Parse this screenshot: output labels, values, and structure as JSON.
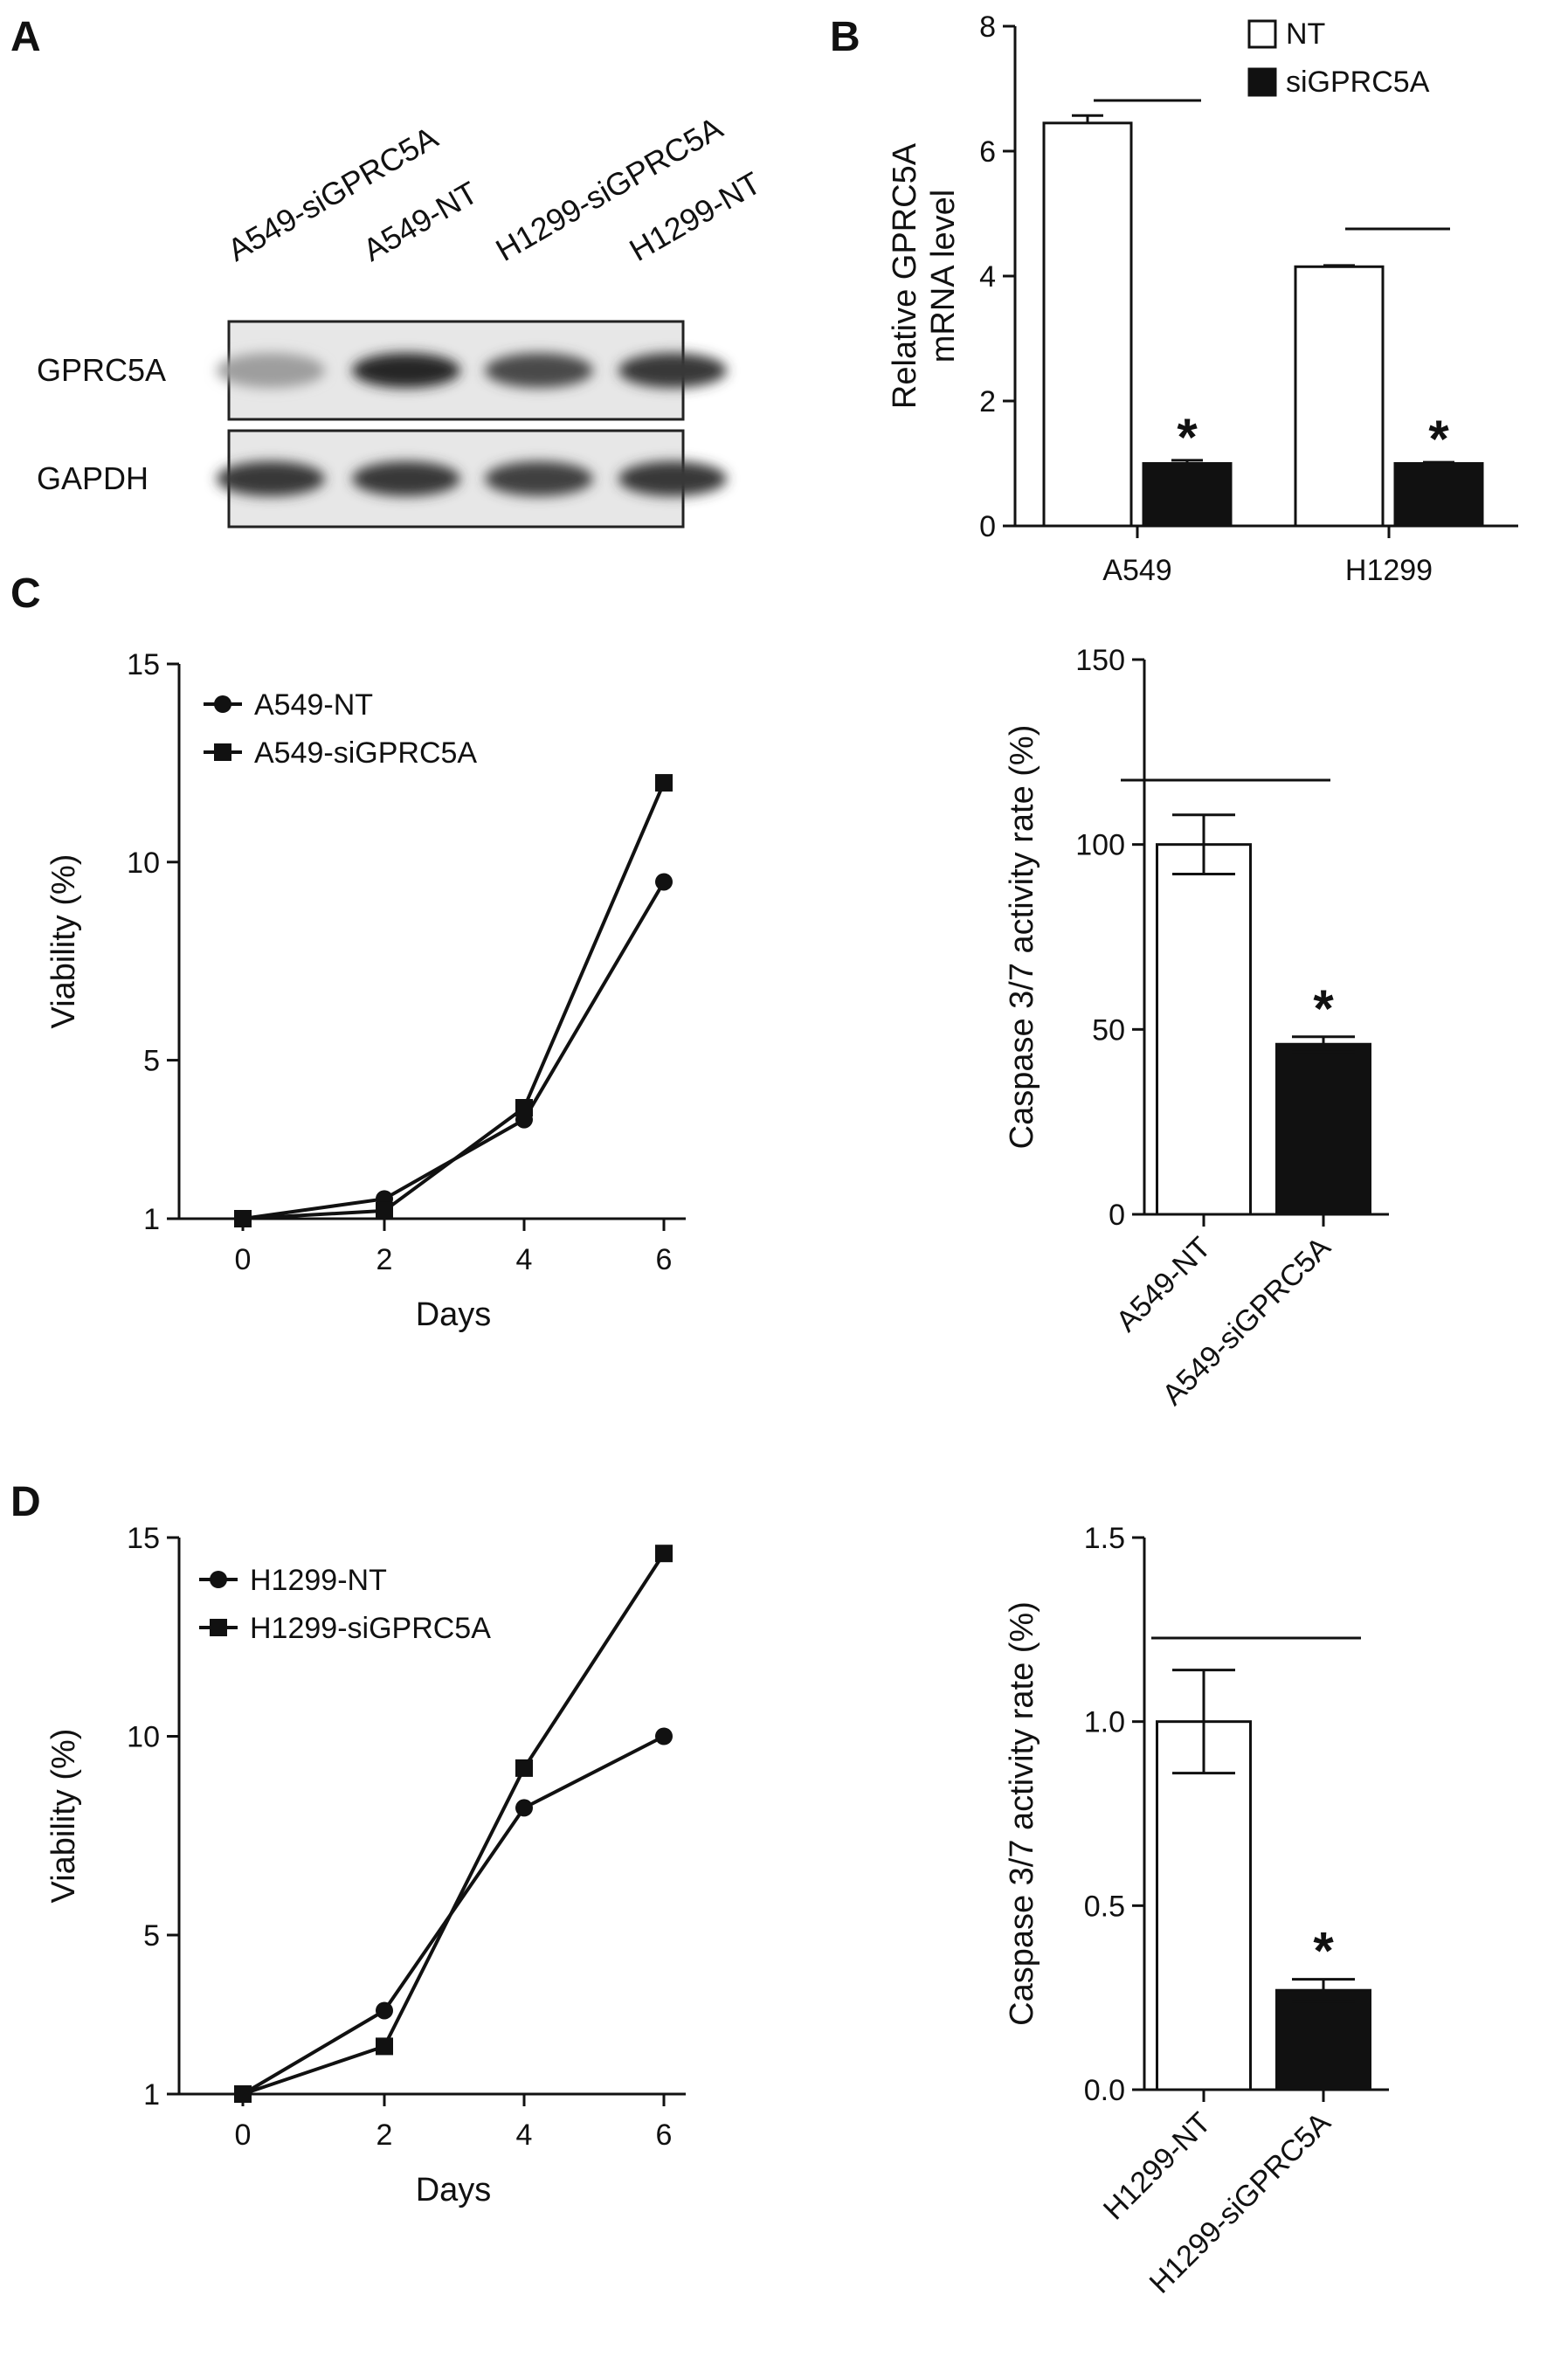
{
  "panel_labels": {
    "A": "A",
    "B": "B",
    "C": "C",
    "D": "D"
  },
  "blot": {
    "lanes": [
      "A549-siGPRC5A",
      "A549-NT",
      "H1299-siGPRC5A",
      "H1299-NT"
    ],
    "rows": [
      {
        "label": "GPRC5A",
        "intensity": [
          0.25,
          0.95,
          0.75,
          0.85
        ]
      },
      {
        "label": "GAPDH",
        "intensity": [
          0.85,
          0.85,
          0.8,
          0.85
        ]
      }
    ]
  },
  "chart_data": [
    {
      "id": "B",
      "type": "bar",
      "ylabel": "Relative GPRC5A\nmRNA level",
      "categories": [
        "A549",
        "H1299"
      ],
      "ylim": [
        0,
        8
      ],
      "yticks": [
        "0",
        "2",
        "4",
        "6",
        "8"
      ],
      "series": [
        {
          "name": "NT",
          "color": "#ffffff",
          "values": [
            6.45,
            4.15
          ],
          "err": [
            0.12,
            0.02
          ]
        },
        {
          "name": "siGPRC5A",
          "color": "#111111",
          "values": [
            1.0,
            1.0
          ],
          "err": [
            0.05,
            0.02
          ]
        }
      ],
      "annotations": [
        "*",
        "*"
      ],
      "legend": "top-right"
    },
    {
      "id": "C-left",
      "type": "line",
      "xlabel": "Days",
      "ylabel": "Viability (%)",
      "x": [
        0,
        2,
        4,
        6
      ],
      "xticks": [
        "0",
        "2",
        "4",
        "6"
      ],
      "ylim": [
        1,
        15
      ],
      "yticks": [
        "1",
        "5",
        "10",
        "15"
      ],
      "series": [
        {
          "name": "A549-NT",
          "marker": "circle",
          "values": [
            1.0,
            1.5,
            3.5,
            9.5
          ]
        },
        {
          "name": "A549-siGPRC5A",
          "marker": "square",
          "values": [
            1.0,
            1.2,
            3.8,
            12.0
          ]
        }
      ],
      "legend": "top-left"
    },
    {
      "id": "C-right",
      "type": "bar",
      "ylabel": "Caspase 3/7 activity rate (%)",
      "categories": [
        "A549-NT",
        "A549-siGPRC5A"
      ],
      "ylim": [
        0,
        150
      ],
      "yticks": [
        "0",
        "50",
        "100",
        "150"
      ],
      "values": [
        100,
        46
      ],
      "err": [
        8,
        2
      ],
      "colors": [
        "#ffffff",
        "#111111"
      ],
      "annotations": [
        "",
        "*"
      ]
    },
    {
      "id": "D-left",
      "type": "line",
      "xlabel": "Days",
      "ylabel": "Viability (%)",
      "x": [
        0,
        2,
        4,
        6
      ],
      "xticks": [
        "0",
        "2",
        "4",
        "6"
      ],
      "ylim": [
        1,
        15
      ],
      "yticks": [
        "1",
        "5",
        "10",
        "15"
      ],
      "series": [
        {
          "name": "H1299-NT",
          "marker": "circle",
          "values": [
            1.0,
            3.1,
            8.2,
            10.0
          ]
        },
        {
          "name": "H1299-siGPRC5A",
          "marker": "square",
          "values": [
            1.0,
            2.2,
            9.2,
            14.6
          ]
        }
      ],
      "legend": "top-left"
    },
    {
      "id": "D-right",
      "type": "bar",
      "ylabel": "Caspase 3/7 activity rate (%)",
      "categories": [
        "H1299-NT",
        "H1299-siGPRC5A"
      ],
      "ylim": [
        0,
        1.5
      ],
      "yticks": [
        "0.0",
        "0.5",
        "1.0",
        "1.5"
      ],
      "values": [
        1.0,
        0.27
      ],
      "err": [
        0.14,
        0.03
      ],
      "colors": [
        "#ffffff",
        "#111111"
      ],
      "annotations": [
        "",
        "*"
      ]
    }
  ]
}
